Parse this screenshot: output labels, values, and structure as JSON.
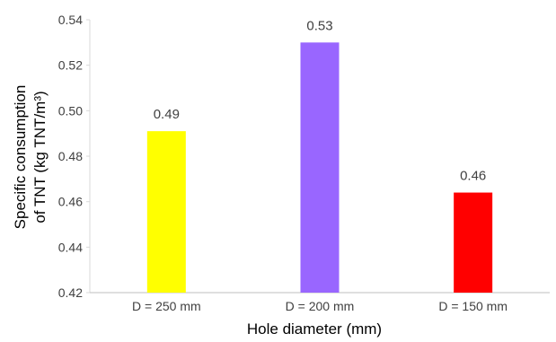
{
  "chart_data": {
    "type": "bar",
    "categories": [
      "D = 250 mm",
      "D = 200 mm",
      "D = 150 mm"
    ],
    "values": [
      0.491,
      0.53,
      0.464
    ],
    "data_labels": [
      "0.49",
      "0.53",
      "0.46"
    ],
    "colors": [
      "#ffff00",
      "#9966ff",
      "#ff0000"
    ],
    "title": "",
    "xlabel": "Hole diameter (mm)",
    "ylabel_line1": "Specific consumption",
    "ylabel_line2": "of  TNT (kg TNT/m³)",
    "ylim": [
      0.42,
      0.54
    ],
    "yticks": [
      0.42,
      0.44,
      0.46,
      0.48,
      0.5,
      0.52,
      0.54
    ],
    "ytick_labels": [
      "0.42",
      "0.44",
      "0.46",
      "0.48",
      "0.50",
      "0.52",
      "0.54"
    ],
    "grid": false,
    "legend": "none"
  }
}
